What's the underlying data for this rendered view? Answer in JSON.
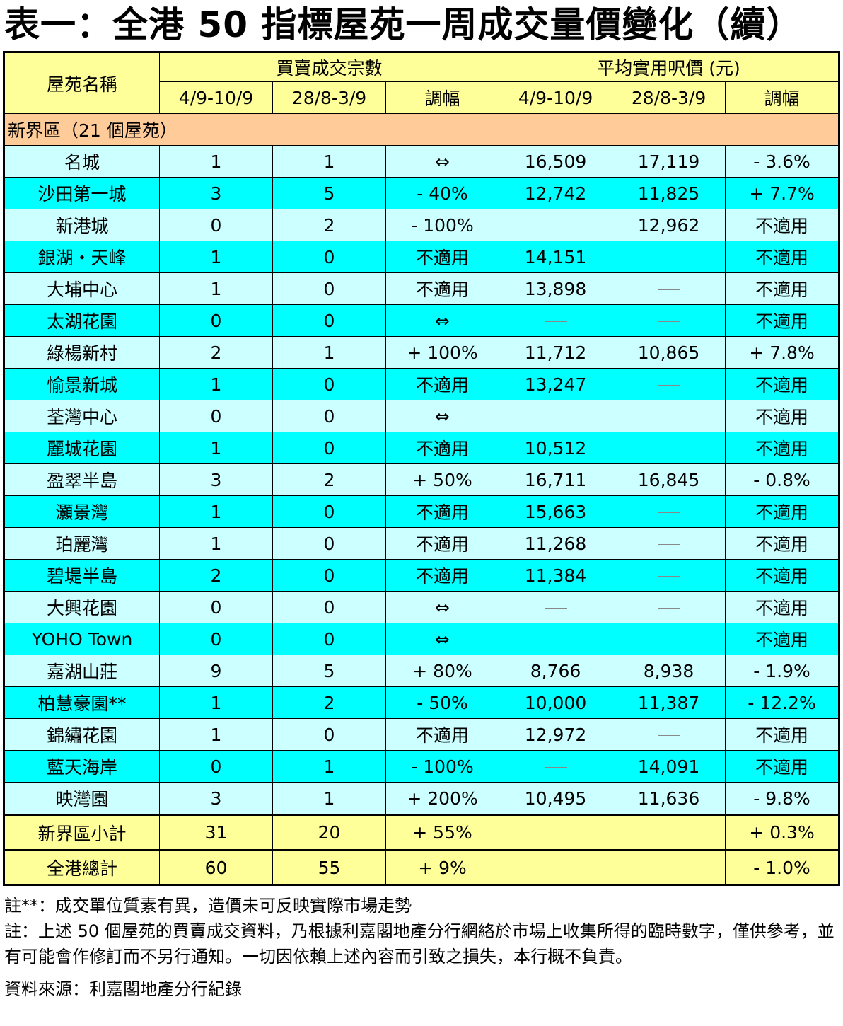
{
  "title": "表一：全港 50 指標屋苑一周成交量價變化（續）",
  "header": {
    "name_col": "屋苑名稱",
    "group_volume": "買賣成交宗數",
    "group_price": "平均實用呎價 (元)",
    "period_current": "4/9-10/9",
    "period_previous": "28/8-3/9",
    "change": "調幅"
  },
  "section_label": "新界區（21 個屋苑）",
  "rows": [
    {
      "name": "名城",
      "vol_cur": "1",
      "vol_prev": "1",
      "vol_chg": "⇔",
      "price_cur": "16,509",
      "price_prev": "17,119",
      "price_chg": "- 3.6%"
    },
    {
      "name": "沙田第一城",
      "vol_cur": "3",
      "vol_prev": "5",
      "vol_chg": "- 40%",
      "price_cur": "12,742",
      "price_prev": "11,825",
      "price_chg": "+ 7.7%"
    },
    {
      "name": "新港城",
      "vol_cur": "0",
      "vol_prev": "2",
      "vol_chg": "- 100%",
      "price_cur": "",
      "price_prev": "12,962",
      "price_chg": "不適用"
    },
    {
      "name": "銀湖・天峰",
      "vol_cur": "1",
      "vol_prev": "0",
      "vol_chg": "不適用",
      "price_cur": "14,151",
      "price_prev": "",
      "price_chg": "不適用"
    },
    {
      "name": "大埔中心",
      "vol_cur": "1",
      "vol_prev": "0",
      "vol_chg": "不適用",
      "price_cur": "13,898",
      "price_prev": "",
      "price_chg": "不適用"
    },
    {
      "name": "太湖花園",
      "vol_cur": "0",
      "vol_prev": "0",
      "vol_chg": "⇔",
      "price_cur": "",
      "price_prev": "",
      "price_chg": "不適用"
    },
    {
      "name": "綠楊新村",
      "vol_cur": "2",
      "vol_prev": "1",
      "vol_chg": "+ 100%",
      "price_cur": "11,712",
      "price_prev": "10,865",
      "price_chg": "+ 7.8%"
    },
    {
      "name": "愉景新城",
      "vol_cur": "1",
      "vol_prev": "0",
      "vol_chg": "不適用",
      "price_cur": "13,247",
      "price_prev": "",
      "price_chg": "不適用"
    },
    {
      "name": "荃灣中心",
      "vol_cur": "0",
      "vol_prev": "0",
      "vol_chg": "⇔",
      "price_cur": "",
      "price_prev": "",
      "price_chg": "不適用"
    },
    {
      "name": "麗城花園",
      "vol_cur": "1",
      "vol_prev": "0",
      "vol_chg": "不適用",
      "price_cur": "10,512",
      "price_prev": "",
      "price_chg": "不適用"
    },
    {
      "name": "盈翠半島",
      "vol_cur": "3",
      "vol_prev": "2",
      "vol_chg": "+ 50%",
      "price_cur": "16,711",
      "price_prev": "16,845",
      "price_chg": "- 0.8%"
    },
    {
      "name": "灝景灣",
      "vol_cur": "1",
      "vol_prev": "0",
      "vol_chg": "不適用",
      "price_cur": "15,663",
      "price_prev": "",
      "price_chg": "不適用"
    },
    {
      "name": "珀麗灣",
      "vol_cur": "1",
      "vol_prev": "0",
      "vol_chg": "不適用",
      "price_cur": "11,268",
      "price_prev": "",
      "price_chg": "不適用"
    },
    {
      "name": "碧堤半島",
      "vol_cur": "2",
      "vol_prev": "0",
      "vol_chg": "不適用",
      "price_cur": "11,384",
      "price_prev": "",
      "price_chg": "不適用"
    },
    {
      "name": "大興花園",
      "vol_cur": "0",
      "vol_prev": "0",
      "vol_chg": "⇔",
      "price_cur": "",
      "price_prev": "",
      "price_chg": "不適用"
    },
    {
      "name": "YOHO Town",
      "vol_cur": "0",
      "vol_prev": "0",
      "vol_chg": "⇔",
      "price_cur": "",
      "price_prev": "",
      "price_chg": "不適用"
    },
    {
      "name": "嘉湖山莊",
      "vol_cur": "9",
      "vol_prev": "5",
      "vol_chg": "+ 80%",
      "price_cur": "8,766",
      "price_prev": "8,938",
      "price_chg": "- 1.9%"
    },
    {
      "name": "柏慧豪園**",
      "vol_cur": "1",
      "vol_prev": "2",
      "vol_chg": "- 50%",
      "price_cur": "10,000",
      "price_prev": "11,387",
      "price_chg": "- 12.2%"
    },
    {
      "name": "錦繡花園",
      "vol_cur": "1",
      "vol_prev": "0",
      "vol_chg": "不適用",
      "price_cur": "12,972",
      "price_prev": "",
      "price_chg": "不適用"
    },
    {
      "name": "藍天海岸",
      "vol_cur": "0",
      "vol_prev": "1",
      "vol_chg": "- 100%",
      "price_cur": "",
      "price_prev": "14,091",
      "price_chg": "不適用"
    },
    {
      "name": "映灣園",
      "vol_cur": "3",
      "vol_prev": "1",
      "vol_chg": "+ 200%",
      "price_cur": "10,495",
      "price_prev": "11,636",
      "price_chg": "- 9.8%"
    }
  ],
  "subtotal": {
    "name": "新界區小計",
    "vol_cur": "31",
    "vol_prev": "20",
    "vol_chg": "+ 55%",
    "price_cur": "",
    "price_prev": "",
    "price_chg": "+ 0.3%"
  },
  "total": {
    "name": "全港總計",
    "vol_cur": "60",
    "vol_prev": "55",
    "vol_chg": "+ 9%",
    "price_cur": "",
    "price_prev": "",
    "price_chg": "- 1.0%"
  },
  "notes": {
    "note_star": "註**：成交單位質素有異，造價未可反映實際市場走勢",
    "note_main": "註：上述 50 個屋苑的買賣成交資料，乃根據利嘉閣地產分行網絡於市場上收集所得的臨時數字，僅供參考，並有可能會作修訂而不另行通知。一切因依賴上述內容而引致之損失，本行概不負責。",
    "source": "資料來源：利嘉閣地產分行紀錄"
  },
  "colors": {
    "header_bg": "#ffff99",
    "section_bg": "#ffcc99",
    "row_light": "#ccffff",
    "row_dark": "#00ffff"
  }
}
